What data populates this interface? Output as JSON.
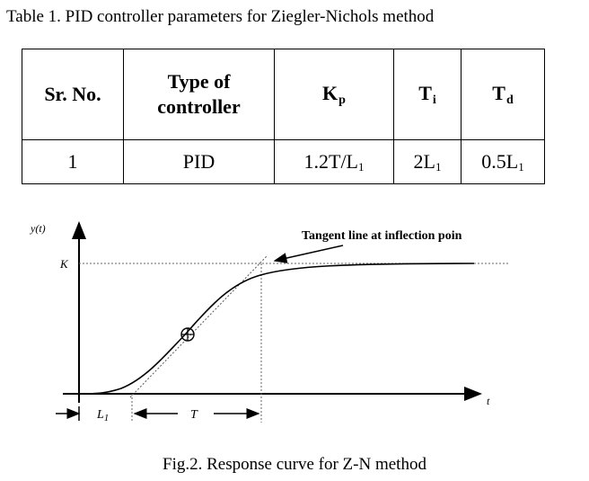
{
  "table_caption": "Table 1. PID controller parameters for  Ziegler-Nichols  method",
  "table": {
    "headers": {
      "sr_no": "Sr. No.",
      "type_line1": "Type of",
      "type_line2": "controller",
      "kp": {
        "base": "K",
        "sub": "p"
      },
      "ti": {
        "base": "T",
        "sub": "i"
      },
      "td": {
        "base": "T",
        "sub": "d"
      }
    },
    "row": {
      "sr_no": "1",
      "type": "PID",
      "kp": {
        "pre": "1.2T/L",
        "sub": "1"
      },
      "ti": {
        "pre": "2L",
        "sub": "1"
      },
      "td": {
        "pre": "0.5L",
        "sub": "1"
      }
    }
  },
  "diagram": {
    "y_label": "y(t)",
    "k_label": "K",
    "t_label": "t",
    "annotation": "Tangent line at inflection poin",
    "l1_label": "L",
    "l1_sub": "1",
    "T_label": "T"
  },
  "figure_caption": "Fig.2. Response curve for Z-N method"
}
